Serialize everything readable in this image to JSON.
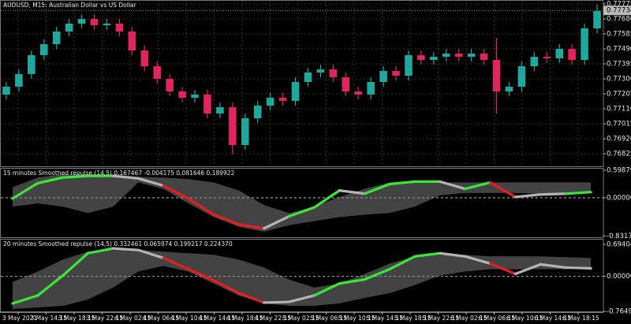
{
  "chart_data": [
    {
      "type": "candlestick",
      "title": "AUDUSD, M15:  Australian Dollar vs US Dollar",
      "up_color": "#1fa89e",
      "down_color": "#e0245e",
      "grid": true,
      "ylim": [
        0.7674,
        0.778
      ],
      "yticks": [
        0.77775,
        {
          "value": 0.7768,
          "label": "0.77680"
        },
        0.77585,
        {
          "value": 0.7749,
          "label": "0.77490"
        },
        0.77395,
        {
          "value": 0.773,
          "label": "0.77300"
        },
        0.77205,
        {
          "value": 0.7711,
          "label": "0.77110"
        },
        0.77015,
        {
          "value": 0.7692,
          "label": "0.76920"
        },
        0.76825
      ],
      "last_price": 0.77734,
      "open": [
        0.772,
        0.7725,
        0.7733,
        0.7745,
        0.7752,
        0.776,
        0.7765,
        0.7768,
        0.7764,
        0.7765,
        0.776,
        0.7748,
        0.7738,
        0.773,
        0.7722,
        0.7718,
        0.772,
        0.7708,
        0.7712,
        0.7688,
        0.7705,
        0.7713,
        0.7718,
        0.7716,
        0.7728,
        0.7734,
        0.7736,
        0.7731,
        0.7722,
        0.772,
        0.7728,
        0.7735,
        0.7732,
        0.7745,
        0.7742,
        0.7744,
        0.7746,
        0.7744,
        0.7746,
        0.7742,
        0.7722,
        0.7725,
        0.7738,
        0.7744,
        0.7743,
        0.7749,
        0.7742,
        0.7762
      ],
      "high": [
        0.7728,
        0.7736,
        0.7748,
        0.7755,
        0.7763,
        0.7768,
        0.7771,
        0.7771,
        0.7768,
        0.7768,
        0.7763,
        0.7751,
        0.7741,
        0.7733,
        0.7725,
        0.7723,
        0.7723,
        0.7715,
        0.7715,
        0.7708,
        0.7716,
        0.7721,
        0.7721,
        0.7731,
        0.7737,
        0.7739,
        0.7739,
        0.7734,
        0.7725,
        0.7731,
        0.7738,
        0.7738,
        0.7748,
        0.7748,
        0.7747,
        0.7749,
        0.7749,
        0.7749,
        0.7749,
        0.7756,
        0.7728,
        0.7741,
        0.7747,
        0.7747,
        0.7752,
        0.7752,
        0.7765,
        0.7777
      ],
      "low": [
        0.7717,
        0.7722,
        0.773,
        0.7742,
        0.7749,
        0.7757,
        0.7762,
        0.7761,
        0.7761,
        0.7757,
        0.7745,
        0.7735,
        0.7727,
        0.7719,
        0.7715,
        0.7715,
        0.7705,
        0.7705,
        0.7682,
        0.7685,
        0.7702,
        0.771,
        0.7713,
        0.7713,
        0.7725,
        0.7731,
        0.7728,
        0.7719,
        0.7717,
        0.7717,
        0.7725,
        0.7729,
        0.7729,
        0.7739,
        0.7739,
        0.7741,
        0.7741,
        0.7741,
        0.7739,
        0.7708,
        0.7719,
        0.7722,
        0.7735,
        0.774,
        0.774,
        0.7739,
        0.7739,
        0.7759
      ],
      "close": [
        0.7725,
        0.7733,
        0.7745,
        0.7752,
        0.776,
        0.7765,
        0.7768,
        0.7764,
        0.7765,
        0.776,
        0.7748,
        0.7738,
        0.773,
        0.7722,
        0.7718,
        0.772,
        0.7708,
        0.7712,
        0.7688,
        0.7705,
        0.7713,
        0.7718,
        0.7716,
        0.7728,
        0.7734,
        0.7736,
        0.7731,
        0.7722,
        0.772,
        0.7728,
        0.7735,
        0.7732,
        0.7745,
        0.7742,
        0.7744,
        0.7746,
        0.7744,
        0.7746,
        0.7742,
        0.7722,
        0.7725,
        0.7738,
        0.7744,
        0.7743,
        0.7749,
        0.7742,
        0.7762,
        0.7773
      ]
    },
    {
      "type": "line",
      "title": "15 minutes Smoothed repulse (14,5) 0.167467 -0.004175 0.081646 0.189922",
      "ylim": [
        -0.877,
        0.649
      ],
      "yticks": [
        0.598791,
        {
          "value": 0,
          "label": "0.000000"
        },
        -0.831765
      ],
      "band_color": "#4a4a4a",
      "upper": [
        0.228,
        0.439,
        0.509,
        0.509,
        0.509,
        0.456,
        0.439,
        0.404,
        0.333,
        0.158,
        -0.158,
        -0.333,
        -0.193,
        0.018,
        0.193,
        0.333,
        0.333,
        0.333,
        0.333,
        0.333,
        0.333,
        0.333,
        0.333,
        0.333
      ],
      "lower": [
        -0.193,
        -0.123,
        -0.193,
        -0.333,
        -0.193,
        0.333,
        0.193,
        -0.123,
        -0.421,
        -0.632,
        -0.737,
        -0.596,
        -0.509,
        -0.421,
        -0.368,
        -0.333,
        -0.193,
        0.053,
        0.105,
        0.105,
        0.105,
        0.088,
        0.088,
        0.105
      ],
      "values": [
        -0.018,
        0.316,
        0.439,
        0.474,
        0.474,
        0.421,
        0.263,
        -0.018,
        -0.368,
        -0.579,
        -0.667,
        -0.404,
        -0.211,
        0.158,
        0.088,
        0.298,
        0.351,
        0.351,
        0.193,
        0.333,
        0.018,
        0.07,
        0.088,
        0.123
      ],
      "segment_colors": [
        "#3ae63a",
        "#3ae63a",
        "#3ae63a",
        "#3ae63a",
        "#b4b4b4",
        "#b4b4b4",
        "#e61e1e",
        "#e61e1e",
        "#e61e1e",
        "#e61e1e",
        "#b4b4b4",
        "#3ae63a",
        "#3ae63a",
        "#b4b4b4",
        "#3ae63a",
        "#3ae63a",
        "#3ae63a",
        "#b4b4b4",
        "#3ae63a",
        "#e61e1e",
        "#b4b4b4",
        "#b4b4b4",
        "#3ae63a"
      ]
    },
    {
      "type": "line",
      "title": "20 minutes Smoothed repulse (14,5) 0.332461 0.065974 0.199217 0.224370",
      "ylim": [
        -0.78,
        0.816
      ],
      "yticks": [
        0.694047,
        {
          "value": 0,
          "label": "0.000000"
        },
        -0.764991
      ],
      "band_color": "#4a4a4a",
      "upper": [
        -0.122,
        0.104,
        0.365,
        0.538,
        0.573,
        0.573,
        0.538,
        0.503,
        0.469,
        0.365,
        0.191,
        -0.069,
        -0.243,
        -0.156,
        0.052,
        0.278,
        0.434,
        0.469,
        0.469,
        0.434,
        0.434,
        0.434,
        0.417,
        0.399
      ],
      "lower": [
        -0.712,
        -0.677,
        -0.642,
        -0.503,
        -0.243,
        0.104,
        0.226,
        0.104,
        -0.156,
        -0.417,
        -0.59,
        -0.642,
        -0.642,
        -0.59,
        -0.469,
        -0.365,
        -0.191,
        0.017,
        0.104,
        0.156,
        0.156,
        0.156,
        0.156,
        0.191
      ],
      "values": [
        -0.59,
        -0.417,
        0.017,
        0.503,
        0.608,
        0.573,
        0.399,
        0.156,
        -0.087,
        -0.365,
        -0.573,
        -0.556,
        -0.417,
        -0.156,
        -0.069,
        0.156,
        0.434,
        0.503,
        0.434,
        0.278,
        0.052,
        0.26,
        0.191,
        0.174
      ],
      "segment_colors": [
        "#3ae63a",
        "#3ae63a",
        "#3ae63a",
        "#3ae63a",
        "#b4b4b4",
        "#b4b4b4",
        "#e61e1e",
        "#e61e1e",
        "#e61e1e",
        "#e61e1e",
        "#b4b4b4",
        "#b4b4b4",
        "#3ae63a",
        "#3ae63a",
        "#3ae63a",
        "#3ae63a",
        "#3ae63a",
        "#b4b4b4",
        "#b4b4b4",
        "#e61e1e",
        "#b4b4b4",
        "#b4b4b4",
        "#b4b4b4"
      ]
    }
  ],
  "time_axis": {
    "labels": [
      "3 May 2021",
      "3 May 14:15",
      "3 May 18:15",
      "3 May 22:15",
      "4 May 02:15",
      "4 May 06:15",
      "4 May 10:15",
      "4 May 14:15",
      "4 May 18:15",
      "4 May 22:15",
      "5 May 02:15",
      "5 May 06:15",
      "5 May 10:15",
      "5 May 14:15",
      "5 May 18:15",
      "5 May 22:15",
      "6 May 02:15",
      "6 May 06:15",
      "6 May 10:15",
      "6 May 14:15",
      "6 May 18:15"
    ]
  }
}
